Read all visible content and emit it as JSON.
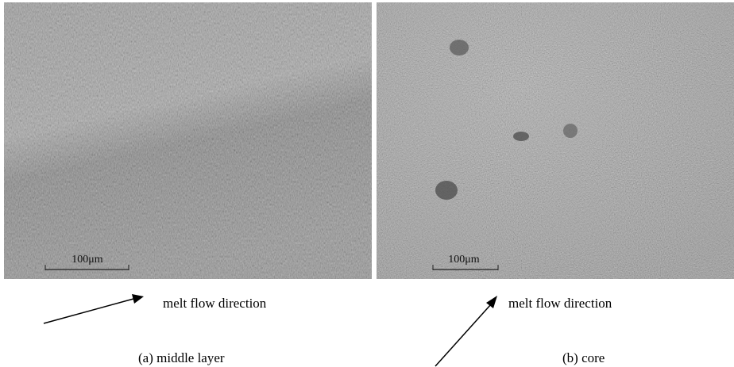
{
  "panels": [
    {
      "scale_bar": "100μm",
      "arrow_label": "melt flow direction",
      "caption": "(a) middle layer"
    },
    {
      "scale_bar": "100μm",
      "arrow_label": "melt flow direction",
      "caption": "(b) core"
    }
  ]
}
